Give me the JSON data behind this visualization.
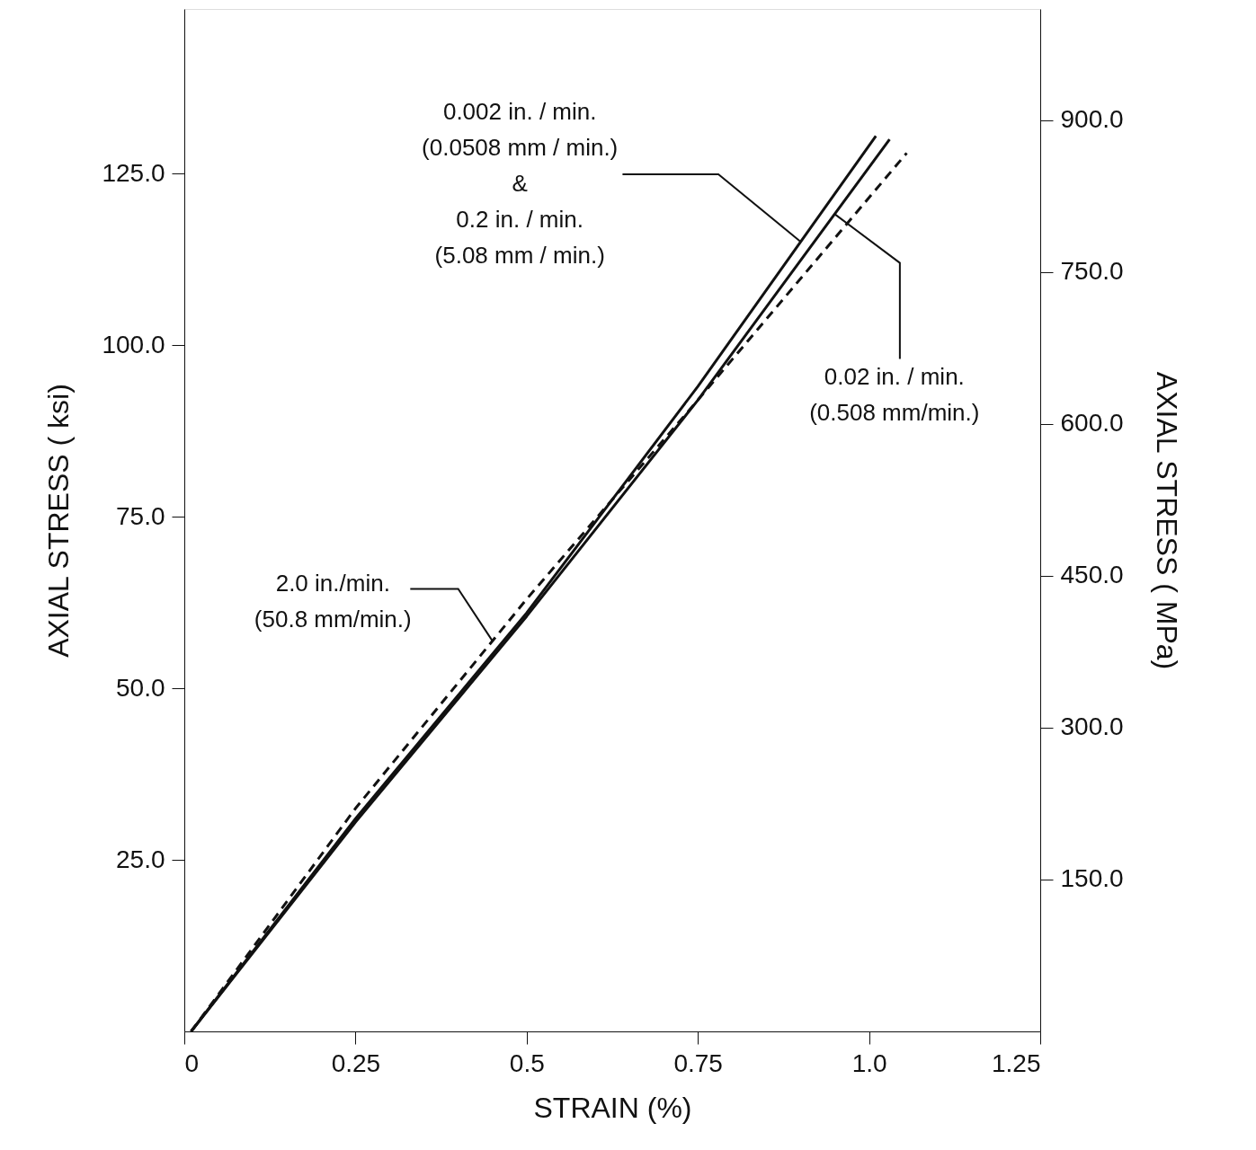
{
  "chart_data": {
    "type": "line",
    "xlabel": "STRAIN (%)",
    "ylabel": "AXIAL STRESS ( ksi)",
    "y2label": "AXIAL STRESS ( MPa)",
    "xlim": [
      0,
      1.25
    ],
    "xticks": [
      0,
      0.25,
      0.5,
      0.75,
      {
        "value": 1.0,
        "label": "1.0"
      },
      1.25
    ],
    "ylim": [
      0,
      149
    ],
    "yticks": [
      {
        "value": 25,
        "label": "25.0"
      },
      {
        "value": 50,
        "label": "50.0"
      },
      {
        "value": 75,
        "label": "75.0"
      },
      {
        "value": 100,
        "label": "100.0"
      },
      {
        "value": 125,
        "label": "125.0"
      }
    ],
    "y2lim": [
      0,
      1010
    ],
    "y2ticks": [
      {
        "value": 150,
        "label": "150.0"
      },
      {
        "value": 300,
        "label": "300.0"
      },
      {
        "value": 450,
        "label": "450.0"
      },
      {
        "value": 600,
        "label": "600.0"
      },
      {
        "value": 750,
        "label": "750.0"
      },
      {
        "value": 900,
        "label": "900.0"
      }
    ],
    "grid": false,
    "series": [
      {
        "color": "#111111",
        "line_style": "solid",
        "x": [
          0.01,
          0.25,
          0.5,
          0.75,
          1.01
        ],
        "values": [
          0,
          31,
          61,
          94,
          130.5
        ]
      },
      {
        "color": "#111111",
        "line_style": "solid",
        "x": [
          0.01,
          0.25,
          0.5,
          0.75,
          1.03
        ],
        "values": [
          0,
          30.5,
          60.5,
          92,
          130
        ]
      },
      {
        "color": "#111111",
        "line_style": "dashed",
        "x": [
          0.01,
          0.25,
          0.5,
          0.75,
          1.055
        ],
        "values": [
          0,
          32.5,
          63,
          92,
          128
        ]
      }
    ],
    "annotations": [
      {
        "text": "0.002 in. / min.\n(0.0508 mm / min.)\n&\n0.2 in. / min.\n(5.08 mm / min.)",
        "x": 0.9,
        "y": 115.1
      },
      {
        "text": "0.02 in. / min.\n(0.508 mm/min.)",
        "x": 0.95,
        "y": 119.1
      },
      {
        "text": "2.0 in./min.\n(50.8 mm/min.)",
        "x": 0.45,
        "y": 56.9
      }
    ]
  }
}
